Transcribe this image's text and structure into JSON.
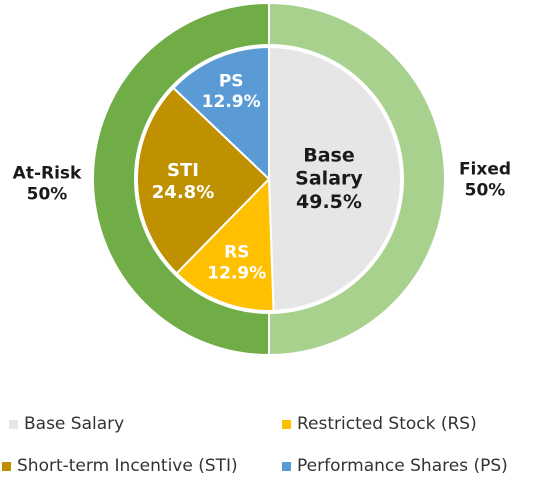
{
  "chart_data": {
    "type": "pie",
    "inner": {
      "slices": [
        {
          "key": "base",
          "label": "Base\nSalary",
          "value": 49.5,
          "value_label": "49.5%",
          "color": "#E7E6E6",
          "text_color": "#1a1a1a"
        },
        {
          "key": "rs",
          "label": "RS",
          "value": 12.9,
          "value_label": "12.9%",
          "color": "#FFC000",
          "text_color": "#ffffff"
        },
        {
          "key": "sti",
          "label": "STI",
          "value": 24.8,
          "value_label": "24.8%",
          "color": "#BF9000",
          "text_color": "#ffffff"
        },
        {
          "key": "ps",
          "label": "PS",
          "value": 12.9,
          "value_label": "12.9%",
          "color": "#5B9BD5",
          "text_color": "#ffffff"
        }
      ]
    },
    "outer": {
      "slices": [
        {
          "key": "fixed",
          "label": "Fixed",
          "value": 50,
          "value_label": "50%",
          "color": "#A9D18E"
        },
        {
          "key": "atrisk",
          "label": "At-Risk",
          "value": 50,
          "value_label": "50%",
          "color": "#70AD47"
        }
      ]
    },
    "legend": [
      {
        "key": "base",
        "label": "Base Salary",
        "color": "#E7E6E6"
      },
      {
        "key": "rs",
        "label": "Restricted Stock (RS)",
        "color": "#FFC000"
      },
      {
        "key": "sti",
        "label": "Short-term Incentive (STI)",
        "color": "#BF9000"
      },
      {
        "key": "ps",
        "label": "Performance Shares (PS)",
        "color": "#5B9BD5"
      }
    ],
    "legend_position": "bottom"
  }
}
